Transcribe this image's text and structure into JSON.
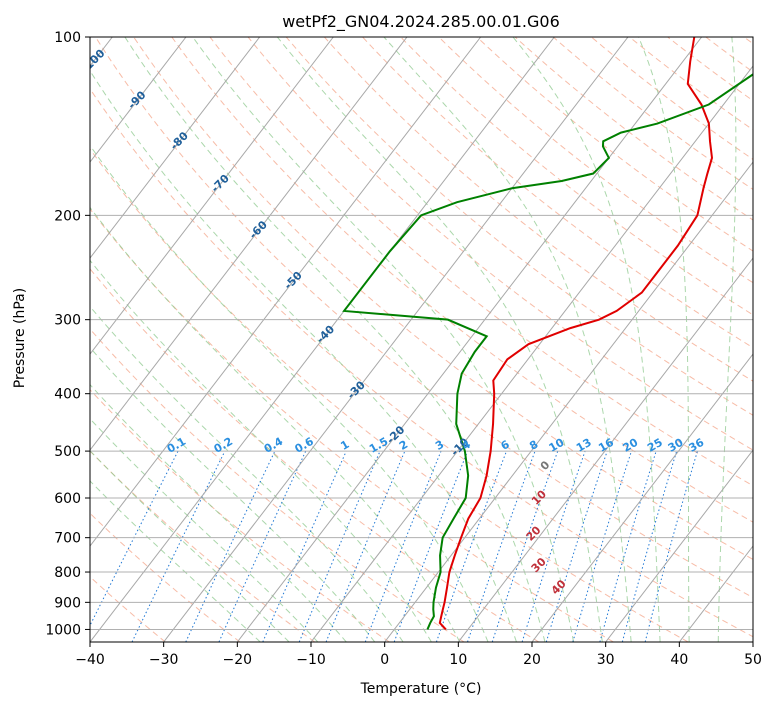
{
  "chart_data": {
    "type": "skew-t",
    "title": "wetPf2_GN04.2024.285.00.01.G06",
    "xlabel": "Temperature (°C)",
    "ylabel": "Pressure (hPa)",
    "xlim": [
      -40,
      50
    ],
    "ylim": [
      1050,
      100
    ],
    "yscale": "log",
    "x_ticks": [
      -40,
      -30,
      -20,
      -10,
      0,
      10,
      20,
      30,
      40,
      50
    ],
    "y_ticks": [
      1000,
      900,
      800,
      700,
      600,
      500,
      400,
      300,
      200,
      100
    ],
    "grid": true,
    "series": [
      {
        "color": "#e00000",
        "points": [
          [
            1000,
            7.0
          ],
          [
            975,
            5.5
          ],
          [
            950,
            5.0
          ],
          [
            925,
            4.5
          ],
          [
            900,
            4.0
          ],
          [
            850,
            2.8
          ],
          [
            800,
            1.5
          ],
          [
            750,
            0.5
          ],
          [
            700,
            -0.5
          ],
          [
            650,
            -1.5
          ],
          [
            600,
            -2.0
          ],
          [
            550,
            -3.5
          ],
          [
            500,
            -5.5
          ],
          [
            450,
            -8.0
          ],
          [
            400,
            -11.0
          ],
          [
            380,
            -12.5
          ],
          [
            350,
            -12.8
          ],
          [
            330,
            -11.5
          ],
          [
            310,
            -7.5
          ],
          [
            300,
            -4.5
          ],
          [
            290,
            -3.0
          ],
          [
            270,
            -1.5
          ],
          [
            250,
            -1.5
          ],
          [
            225,
            -1.5
          ],
          [
            200,
            -2.0
          ],
          [
            180,
            -4.0
          ],
          [
            170,
            -5.0
          ],
          [
            160,
            -6.0
          ],
          [
            150,
            -8.0
          ],
          [
            140,
            -10.0
          ],
          [
            130,
            -13.0
          ],
          [
            120,
            -17.0
          ],
          [
            110,
            -19.0
          ],
          [
            100,
            -21.0
          ]
        ]
      },
      {
        "color": "#008000",
        "points": [
          [
            1000,
            4.5
          ],
          [
            975,
            4.2
          ],
          [
            950,
            4.0
          ],
          [
            925,
            3.2
          ],
          [
            900,
            2.5
          ],
          [
            850,
            1.3
          ],
          [
            800,
            0.3
          ],
          [
            750,
            -1.5
          ],
          [
            700,
            -3.0
          ],
          [
            650,
            -3.5
          ],
          [
            600,
            -4.0
          ],
          [
            550,
            -6.0
          ],
          [
            500,
            -9.0
          ],
          [
            450,
            -13.0
          ],
          [
            400,
            -16.0
          ],
          [
            370,
            -17.5
          ],
          [
            340,
            -18.0
          ],
          [
            320,
            -18.0
          ],
          [
            300,
            -25.0
          ],
          [
            290,
            -40.0
          ],
          [
            230,
            -40.0
          ],
          [
            200,
            -39.5
          ],
          [
            190,
            -36.0
          ],
          [
            180,
            -30.0
          ],
          [
            175,
            -24.0
          ],
          [
            170,
            -20.5
          ],
          [
            160,
            -20.0
          ],
          [
            153,
            -22.0
          ],
          [
            150,
            -22.5
          ],
          [
            145,
            -21.0
          ],
          [
            140,
            -17.0
          ],
          [
            130,
            -12.0
          ],
          [
            115,
            -9.0
          ],
          [
            108,
            -7.5
          ],
          [
            100,
            -7.5
          ]
        ]
      }
    ],
    "dry_adiabat_labels": [
      "-100",
      "-90",
      "-80",
      "-70",
      "-60",
      "-50",
      "-40",
      "-30",
      "-20",
      "-10"
    ],
    "moist_adiabat_labels": [
      "0",
      "10",
      "20",
      "30",
      "40"
    ],
    "mixing_ratio_labels": [
      "0.1",
      "0.2",
      "0.4",
      "0.6",
      "1",
      "1.5",
      "2",
      "3",
      "4",
      "6",
      "8",
      "10",
      "13",
      "16",
      "20",
      "25",
      "30",
      "36"
    ],
    "colors": {
      "temperature": "#e00000",
      "dewpoint": "#008000",
      "isotherm": "#a8a8a8",
      "isobar": "#b0b0b0",
      "dry_adiabat": "#f4a58a",
      "moist_adiabat": "#8fc98f",
      "mixing_ratio": "#1f77d4",
      "dry_label": "#1f5f9a",
      "moist_label": "#c0303a",
      "mixing_label": "#2a8fe0"
    }
  }
}
